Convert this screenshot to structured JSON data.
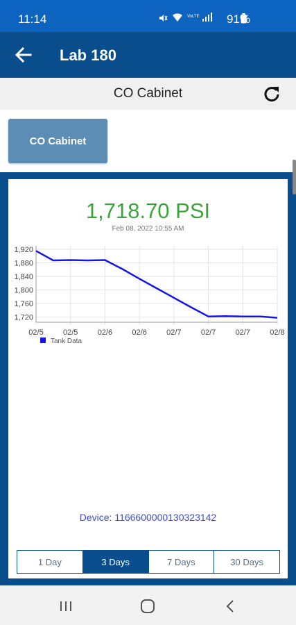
{
  "status": {
    "time": "11:14",
    "battery": "91%"
  },
  "app_bar": {
    "title": "Lab 180"
  },
  "sub_header": {
    "title": "CO Cabinet"
  },
  "selector": {
    "button_label": "CO Cabinet"
  },
  "reading": {
    "value": "1,718.70 PSI",
    "timestamp": "Feb 08, 2022 10:55 AM",
    "color": "#3aa63a"
  },
  "chart_data": {
    "type": "line",
    "x_tick_labels": [
      "02/5",
      "02/5",
      "02/6",
      "02/6",
      "02/7",
      "02/7",
      "02/7",
      "02/8"
    ],
    "y_tick_labels": [
      "1,720",
      "1,760",
      "1,800",
      "1,840",
      "1,880",
      "1,920"
    ],
    "y_ticks": [
      1720,
      1760,
      1800,
      1840,
      1880,
      1920
    ],
    "ylim": [
      1705,
      1930
    ],
    "xlim": [
      0,
      7
    ],
    "series": [
      {
        "name": "Tank Data",
        "color": "#1414e6",
        "x": [
          0,
          0.5,
          1.0,
          1.5,
          2.0,
          2.5,
          3.0,
          3.5,
          4.0,
          4.5,
          5.0,
          5.5,
          6.0,
          6.5,
          7.0
        ],
        "y": [
          1915,
          1887,
          1888,
          1887,
          1888,
          1862,
          1833,
          1805,
          1777,
          1749,
          1722,
          1723,
          1722,
          1722,
          1718
        ]
      }
    ],
    "grid": true,
    "legend": "bottom-left"
  },
  "device": {
    "label": "Device: 1166600000130323142"
  },
  "range_tabs": [
    "1 Day",
    "3 Days",
    "7 Days",
    "30 Days"
  ],
  "active_range": "3 Days",
  "colors": {
    "primary": "#0a4d8c",
    "status_bar": "#0c64c0",
    "button": "#5b8db5"
  }
}
